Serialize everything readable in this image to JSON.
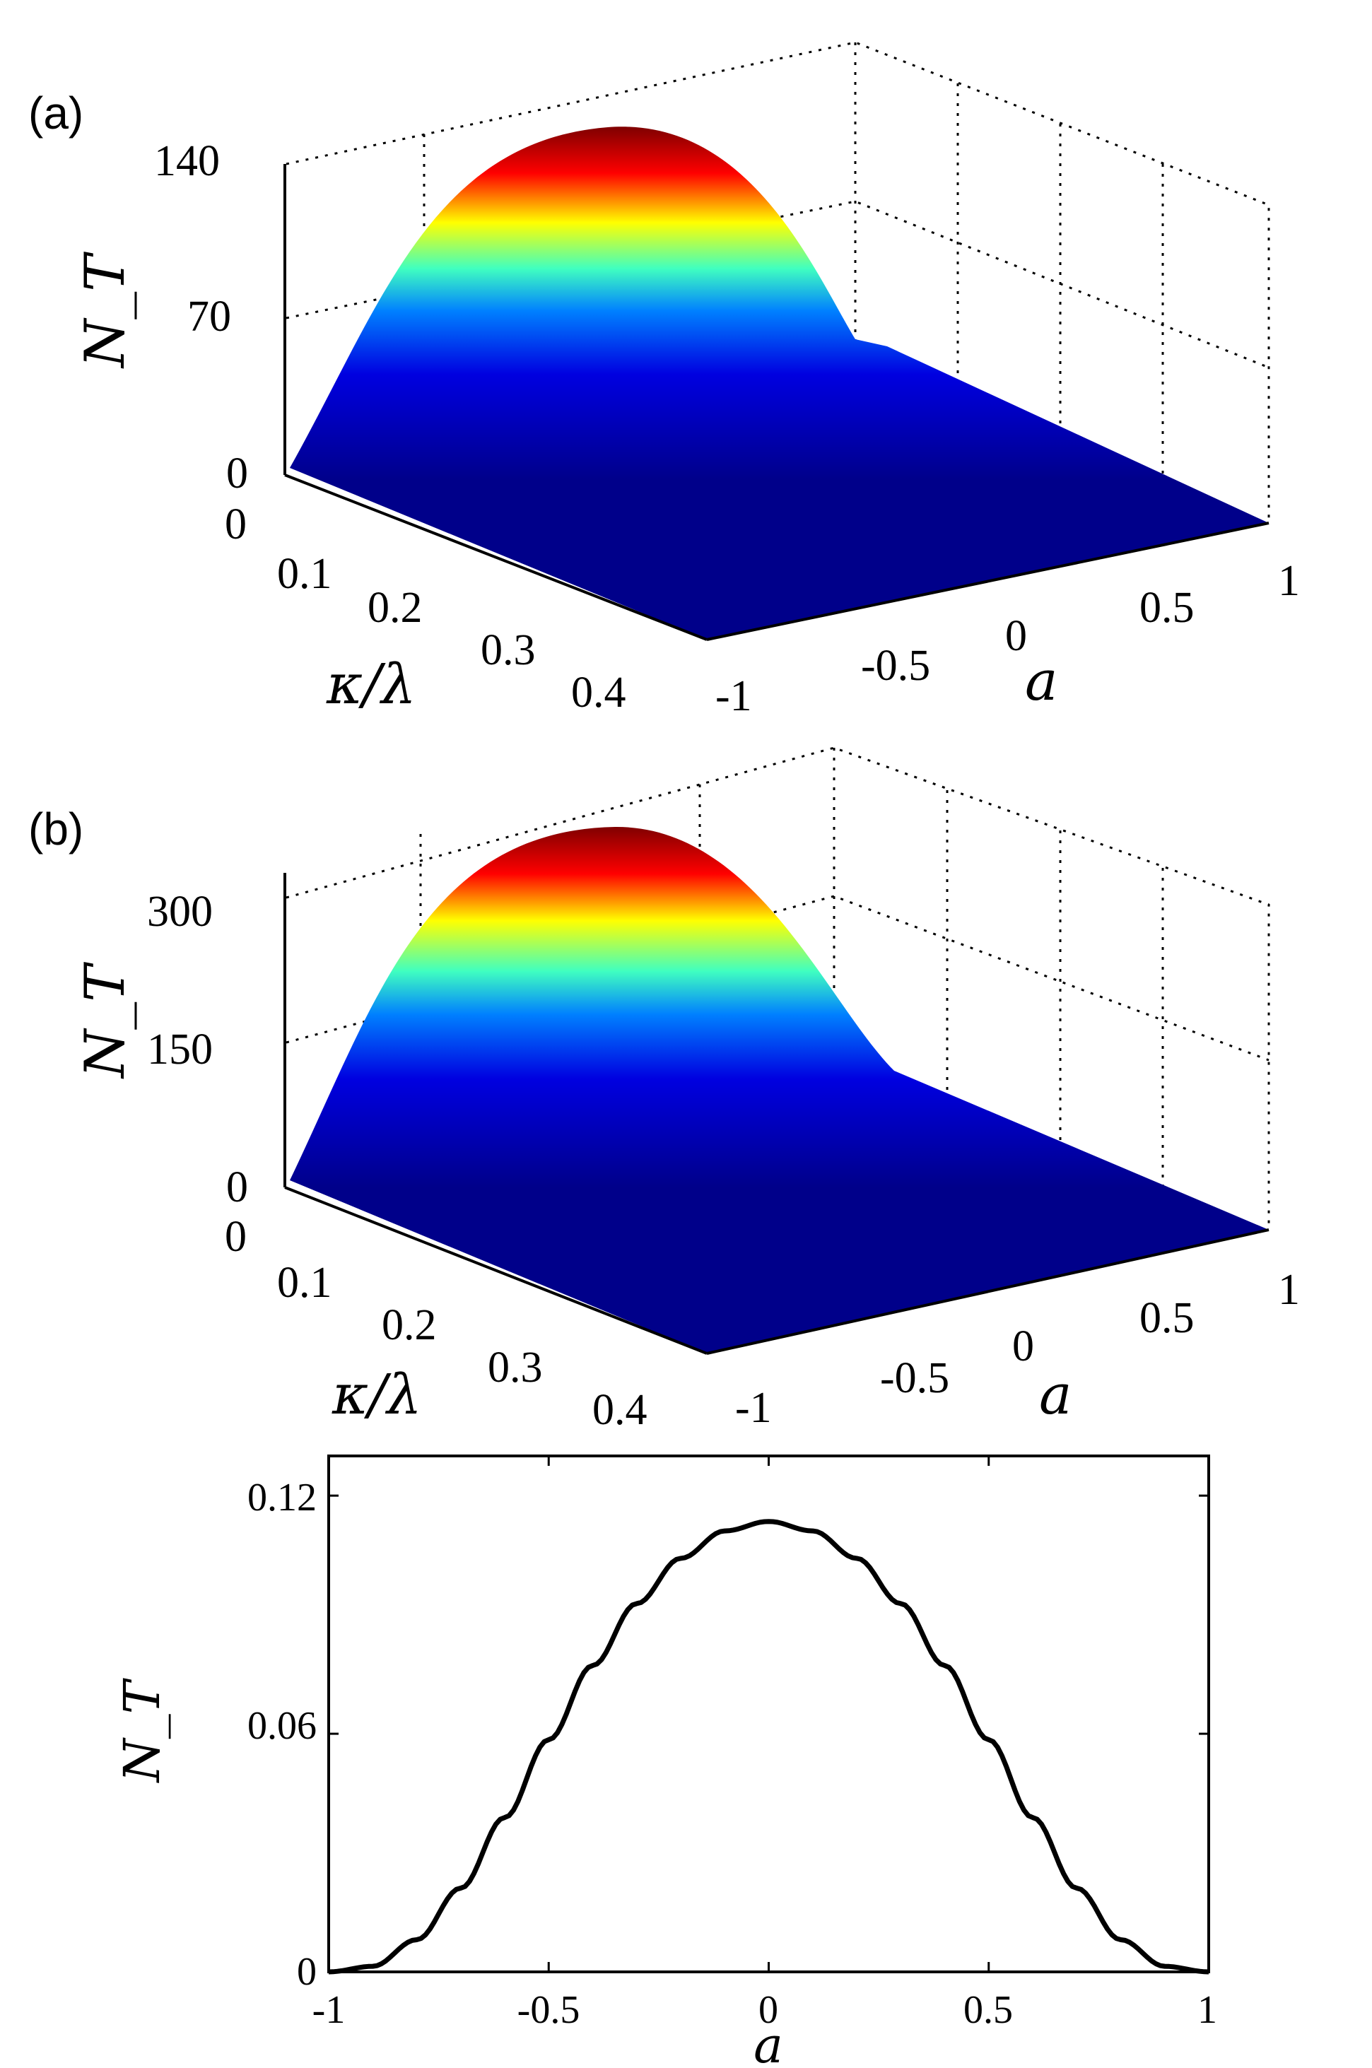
{
  "chart_data": [
    {
      "panel": "(a)",
      "type": "surface",
      "zlabel": "N_T",
      "xlabel": "κ/λ",
      "ylabel": "a",
      "x_ticks": [
        "0",
        "0.1",
        "0.2",
        "0.3",
        "0.4"
      ],
      "y_ticks": [
        "-1",
        "-0.5",
        "0",
        "0.5",
        "1"
      ],
      "z_ticks": [
        "0",
        "70",
        "140"
      ],
      "xlim": [
        0,
        0.4
      ],
      "ylim": [
        -1,
        1
      ],
      "zlim": [
        0,
        140
      ],
      "peak": {
        "kappa_over_lambda": 0.02,
        "a": 0,
        "N_T": 149
      },
      "colormap": "jet",
      "grid": true
    },
    {
      "panel": "(b)",
      "type": "surface",
      "zlabel": "N_T",
      "xlabel": "κ/λ",
      "ylabel": "a",
      "x_ticks": [
        "0",
        "0.1",
        "0.2",
        "0.3",
        "0.4"
      ],
      "y_ticks": [
        "-1",
        "-0.5",
        "0",
        "0.5",
        "1"
      ],
      "z_ticks": [
        "0",
        "150",
        "300"
      ],
      "xlim": [
        0,
        0.4
      ],
      "ylim": [
        -1,
        1
      ],
      "zlim": [
        0,
        300
      ],
      "peak": {
        "kappa_over_lambda": 0.02,
        "a": 0,
        "N_T": 345
      },
      "colormap": "jet",
      "grid": true
    },
    {
      "type": "line",
      "xlabel": "a",
      "ylabel": "N_T",
      "x_ticks": [
        "-1",
        "-0.5",
        "0",
        "0.5",
        "1"
      ],
      "y_ticks": [
        "0",
        "0.06",
        "0.12"
      ],
      "xlim": [
        -1,
        1
      ],
      "ylim": [
        0,
        0.13
      ],
      "grid": false,
      "series": [
        {
          "color": "#000000",
          "x": [
            -1.0,
            -0.9,
            -0.8,
            -0.7,
            -0.6,
            -0.5,
            -0.4,
            -0.3,
            -0.2,
            -0.1,
            0.0,
            0.1,
            0.2,
            0.3,
            0.4,
            0.5,
            0.6,
            0.7,
            0.8,
            0.9,
            1.0
          ],
          "y": [
            0.0,
            0.0014,
            0.0081,
            0.0211,
            0.0389,
            0.0585,
            0.0772,
            0.0928,
            0.1042,
            0.1111,
            0.1135,
            0.1111,
            0.1042,
            0.0928,
            0.0772,
            0.0585,
            0.0389,
            0.0211,
            0.0081,
            0.0014,
            0.0
          ]
        }
      ]
    }
  ]
}
